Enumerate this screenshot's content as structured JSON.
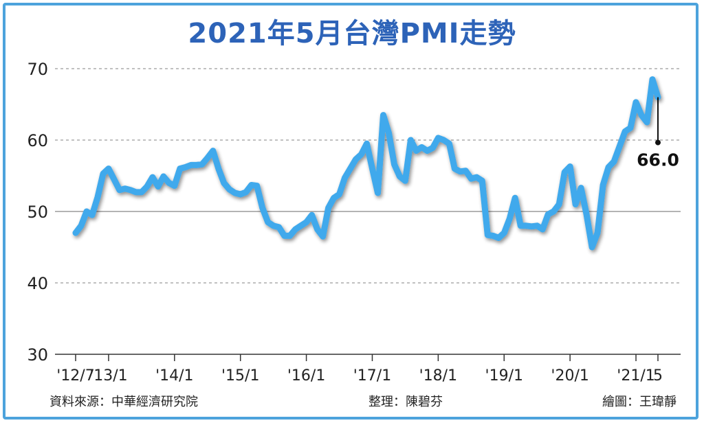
{
  "title": "2021年5月台灣PMI走勢",
  "chart_data": {
    "type": "line",
    "title": "2021年5月台灣PMI走勢",
    "xlabel": "",
    "ylabel": "",
    "ylim": [
      30,
      70
    ],
    "yticks": [
      30,
      40,
      50,
      60,
      70
    ],
    "grid": true,
    "line_color": "#3fa9ec",
    "xtick_labels": [
      "'12/7",
      "'13/1",
      "'14/1",
      "'15/1",
      "'16/1",
      "'17/1",
      "'18/1",
      "'19/1",
      "'20/1",
      "'21/1",
      "5"
    ],
    "xtick_dates": [
      "2012-07",
      "2013-01",
      "2014-01",
      "2015-01",
      "2016-01",
      "2017-01",
      "2018-01",
      "2019-01",
      "2020-01",
      "2021-01",
      "2021-05"
    ],
    "x": [
      "2012-07",
      "2012-08",
      "2012-09",
      "2012-10",
      "2012-11",
      "2012-12",
      "2013-01",
      "2013-02",
      "2013-03",
      "2013-04",
      "2013-05",
      "2013-06",
      "2013-07",
      "2013-08",
      "2013-09",
      "2013-10",
      "2013-11",
      "2013-12",
      "2014-01",
      "2014-02",
      "2014-03",
      "2014-04",
      "2014-05",
      "2014-06",
      "2014-07",
      "2014-08",
      "2014-09",
      "2014-10",
      "2014-11",
      "2014-12",
      "2015-01",
      "2015-02",
      "2015-03",
      "2015-04",
      "2015-05",
      "2015-06",
      "2015-07",
      "2015-08",
      "2015-09",
      "2015-10",
      "2015-11",
      "2015-12",
      "2016-01",
      "2016-02",
      "2016-03",
      "2016-04",
      "2016-05",
      "2016-06",
      "2016-07",
      "2016-08",
      "2016-09",
      "2016-10",
      "2016-11",
      "2016-12",
      "2017-01",
      "2017-02",
      "2017-03",
      "2017-04",
      "2017-05",
      "2017-06",
      "2017-07",
      "2017-08",
      "2017-09",
      "2017-10",
      "2017-11",
      "2017-12",
      "2018-01",
      "2018-02",
      "2018-03",
      "2018-04",
      "2018-05",
      "2018-06",
      "2018-07",
      "2018-08",
      "2018-09",
      "2018-10",
      "2018-11",
      "2018-12",
      "2019-01",
      "2019-02",
      "2019-03",
      "2019-04",
      "2019-05",
      "2019-06",
      "2019-07",
      "2019-08",
      "2019-09",
      "2019-10",
      "2019-11",
      "2019-12",
      "2020-01",
      "2020-02",
      "2020-03",
      "2020-04",
      "2020-05",
      "2020-06",
      "2020-07",
      "2020-08",
      "2020-09",
      "2020-10",
      "2020-11",
      "2020-12",
      "2021-01",
      "2021-02",
      "2021-03",
      "2021-04",
      "2021-05"
    ],
    "series": [
      {
        "values": [
          47.0,
          48.0,
          50.0,
          49.5,
          52.0,
          55.3,
          56.0,
          54.5,
          53.0,
          53.2,
          53.0,
          52.7,
          52.7,
          53.5,
          54.8,
          53.5,
          54.9,
          54.0,
          53.6,
          56.0,
          56.2,
          56.5,
          56.5,
          56.6,
          57.5,
          58.5,
          56.0,
          54.0,
          53.1,
          52.6,
          52.4,
          52.7,
          53.7,
          53.6,
          50.5,
          48.5,
          48.0,
          47.8,
          46.6,
          46.6,
          47.5,
          48.0,
          48.5,
          49.5,
          47.5,
          46.5,
          50.5,
          51.9,
          52.4,
          54.7,
          56.0,
          57.3,
          58.0,
          59.5,
          56.0,
          52.6,
          63.5,
          61.0,
          56.6,
          54.9,
          54.3,
          60.0,
          58.5,
          59.0,
          58.5,
          58.9,
          60.3,
          60.0,
          59.5,
          56.0,
          55.6,
          55.7,
          54.6,
          54.8,
          54.3,
          46.7,
          46.6,
          46.3,
          47.0,
          49.0,
          51.9,
          48.0,
          48.0,
          47.9,
          48.0,
          47.5,
          49.6,
          50.0,
          51.0,
          55.5,
          56.3,
          51.0,
          53.3,
          49.6,
          45.0,
          47.0,
          53.7,
          56.2,
          57.0,
          59.1,
          61.2,
          61.7,
          65.3,
          63.5,
          62.5,
          68.5,
          66.0
        ]
      }
    ],
    "annotation": {
      "text": "66.0",
      "x": "2021-05",
      "y": 66.0
    }
  },
  "credits": {
    "source": "資料來源：中華經濟研究院",
    "editor": "整理：陳碧芬",
    "illustrator": "繪圖：王瑋靜"
  }
}
